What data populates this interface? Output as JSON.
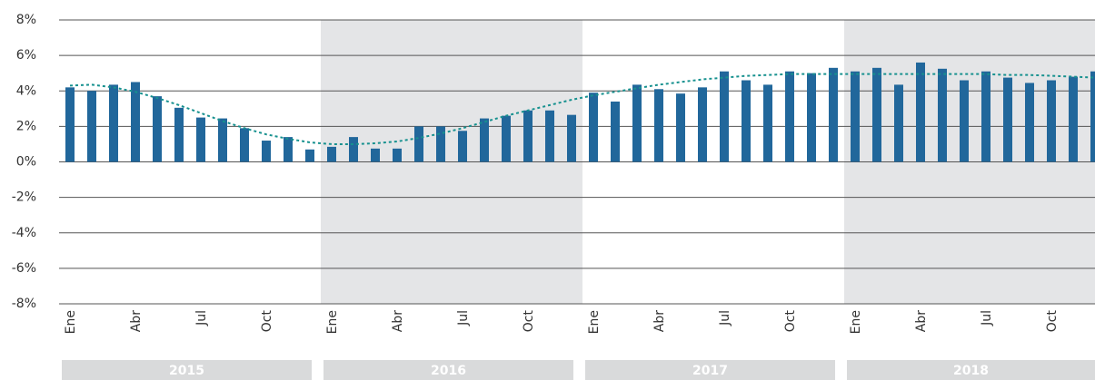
{
  "chart_data": {
    "type": "bar",
    "categories": [
      "Ene",
      null,
      null,
      "Abr",
      null,
      null,
      "Jul",
      null,
      null,
      "Oct",
      null,
      null,
      "Ene",
      null,
      null,
      "Abr",
      null,
      null,
      "Jul",
      null,
      null,
      "Oct",
      null,
      null,
      "Ene",
      null,
      null,
      "Abr",
      null,
      null,
      "Jul",
      null,
      null,
      "Oct",
      null,
      null,
      "Ene",
      null,
      null,
      "Abr",
      null,
      null,
      "Jul",
      null,
      null,
      "Oct",
      null,
      null
    ],
    "years": [
      "2015",
      "2016",
      "2017",
      "2018"
    ],
    "series": [
      {
        "type": "bar",
        "color": "#21679b",
        "values": [
          4.2,
          4.0,
          4.35,
          4.5,
          3.7,
          3.05,
          2.5,
          2.45,
          1.9,
          1.2,
          1.4,
          0.7,
          0.85,
          1.4,
          0.75,
          0.75,
          2.0,
          2.0,
          1.75,
          2.45,
          2.6,
          2.9,
          2.9,
          2.65,
          3.9,
          3.4,
          4.35,
          4.1,
          3.85,
          4.2,
          5.1,
          4.6,
          4.35,
          5.1,
          5.0,
          5.3,
          5.1,
          5.3,
          4.35,
          5.6,
          5.25,
          4.6,
          5.1,
          4.75,
          4.45,
          4.6,
          4.8,
          5.1
        ]
      },
      {
        "type": "line",
        "color": "#17918f",
        "dash": "dotted",
        "values": [
          4.3,
          4.35,
          4.2,
          3.95,
          3.6,
          3.2,
          2.75,
          2.3,
          1.9,
          1.55,
          1.3,
          1.1,
          1.0,
          1.0,
          1.05,
          1.15,
          1.35,
          1.6,
          1.9,
          2.25,
          2.6,
          2.9,
          3.2,
          3.5,
          3.75,
          3.95,
          4.15,
          4.35,
          4.5,
          4.65,
          4.75,
          4.85,
          4.9,
          4.95,
          4.95,
          4.95,
          4.95,
          4.95,
          4.95,
          4.95,
          4.95,
          4.95,
          4.95,
          4.9,
          4.9,
          4.85,
          4.8,
          4.75
        ]
      }
    ],
    "ylim": [
      -8,
      8
    ],
    "yticks": [
      {
        "value": -8,
        "label": "-8%"
      },
      {
        "value": -6,
        "label": "-6%"
      },
      {
        "value": -4,
        "label": "-4%"
      },
      {
        "value": -2,
        "label": "-2%"
      },
      {
        "value": 0,
        "label": "0%"
      },
      {
        "value": 2,
        "label": "2%"
      },
      {
        "value": 4,
        "label": "4%"
      },
      {
        "value": 6,
        "label": "6%"
      },
      {
        "value": 8,
        "label": "8%"
      }
    ],
    "grid": true
  }
}
